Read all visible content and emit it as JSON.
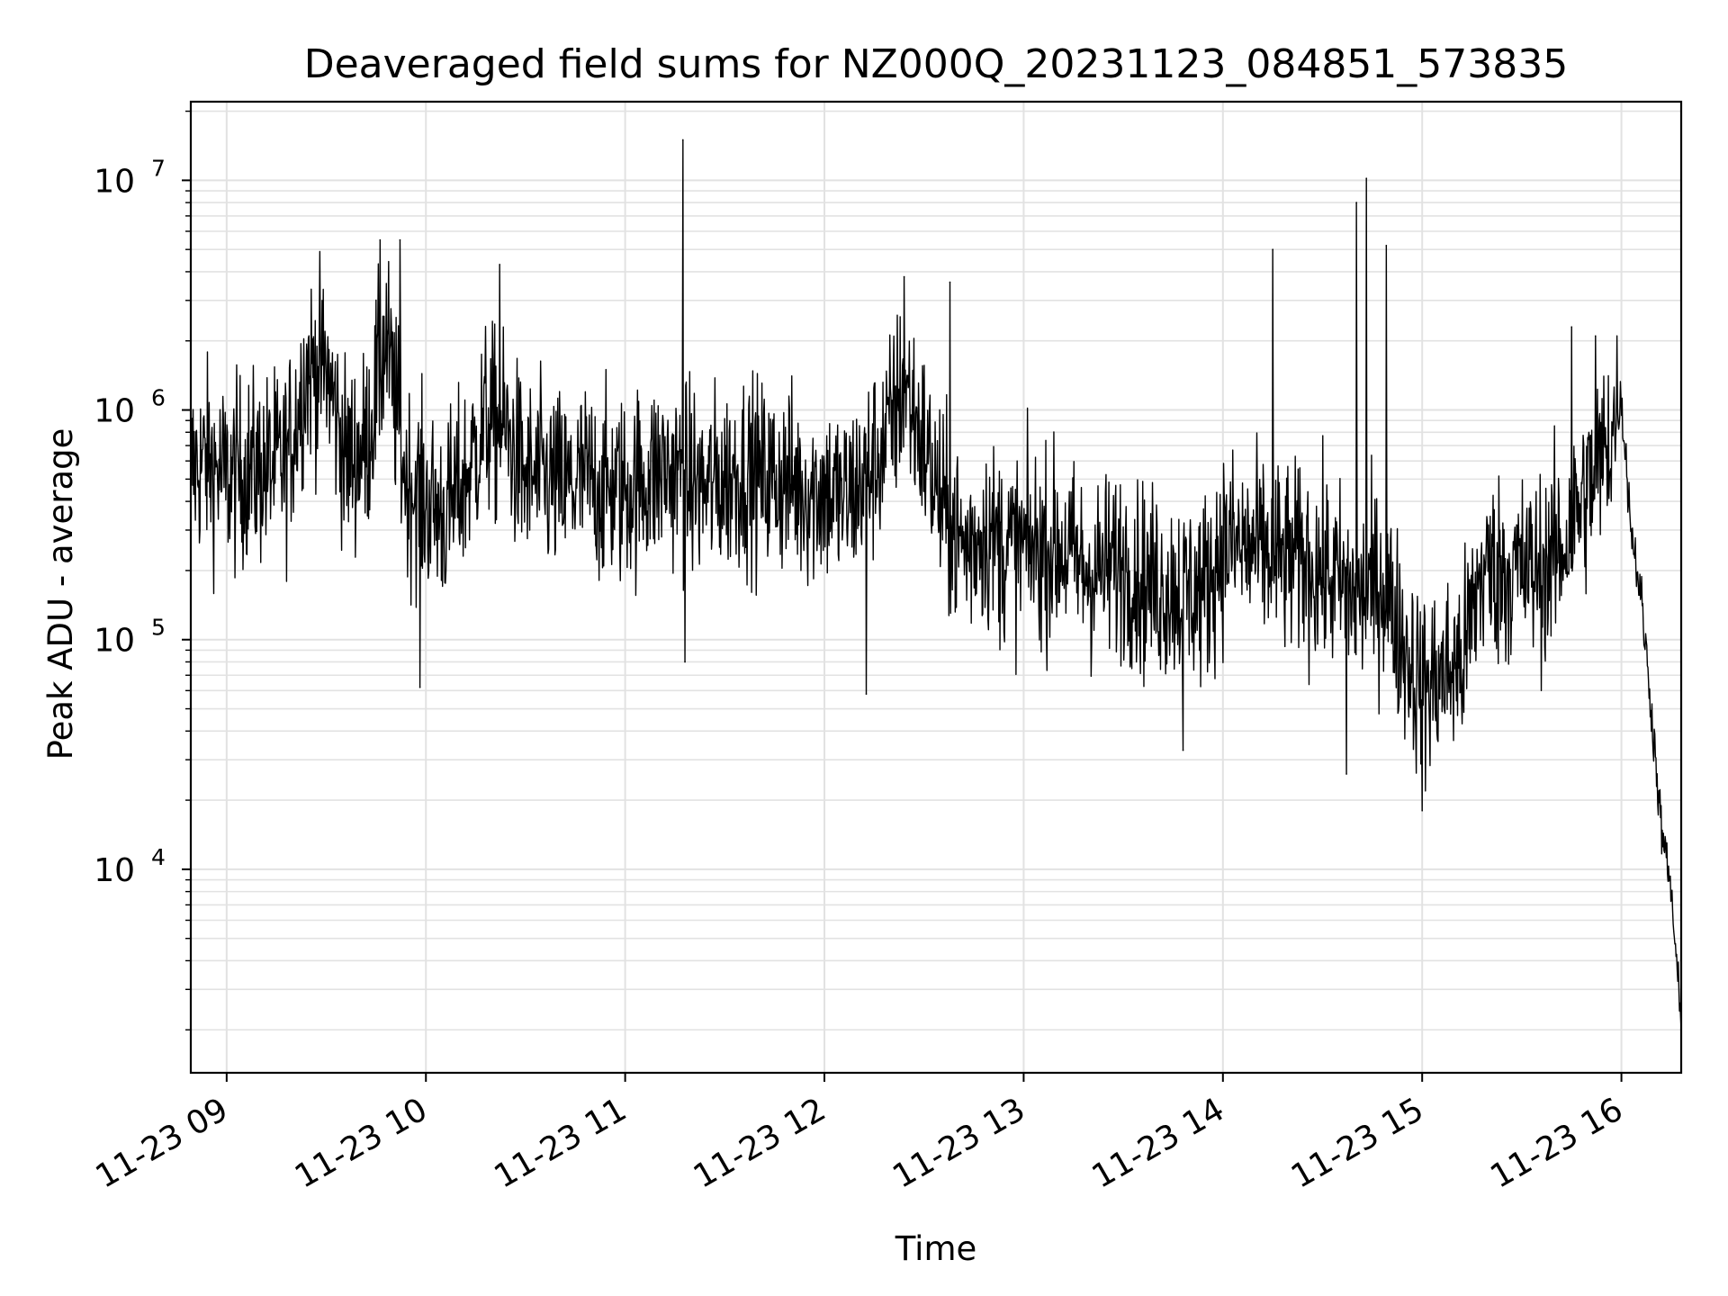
{
  "chart_data": {
    "type": "line",
    "title": "Deaveraged field sums for NZ000Q_20231123_084851_573835",
    "xlabel": "Time",
    "ylabel": "Peak ADU - average",
    "yscale": "log",
    "grid": true,
    "x_ticks": [
      "11-23 09",
      "11-23 10",
      "11-23 11",
      "11-23 12",
      "11-23 13",
      "11-23 14",
      "11-23 15",
      "11-23 16"
    ],
    "x_tick_hours": [
      9,
      10,
      11,
      12,
      13,
      14,
      15,
      16
    ],
    "xlim_hours": [
      8.82,
      16.3
    ],
    "y_ticks": [
      {
        "base": "10",
        "exp": "4",
        "value": 10000
      },
      {
        "base": "10",
        "exp": "5",
        "value": 100000
      },
      {
        "base": "10",
        "exp": "6",
        "value": 1000000
      },
      {
        "base": "10",
        "exp": "7",
        "value": 10000000
      }
    ],
    "ylim": [
      1300,
      22000000
    ],
    "series": [
      {
        "color": "#000000",
        "x_hours": [
          8.82,
          8.9,
          9.0,
          9.1,
          9.2,
          9.3,
          9.4,
          9.5,
          9.6,
          9.7,
          9.8,
          9.9,
          10.0,
          10.1,
          10.2,
          10.3,
          10.4,
          10.5,
          10.6,
          10.7,
          10.8,
          10.9,
          11.0,
          11.1,
          11.2,
          11.3,
          11.4,
          11.5,
          11.6,
          11.7,
          11.8,
          11.9,
          12.0,
          12.1,
          12.2,
          12.3,
          12.4,
          12.5,
          12.6,
          12.7,
          12.8,
          12.9,
          13.0,
          13.1,
          13.2,
          13.3,
          13.4,
          13.5,
          13.6,
          13.7,
          13.8,
          13.9,
          14.0,
          14.1,
          14.2,
          14.3,
          14.4,
          14.5,
          14.6,
          14.7,
          14.8,
          14.9,
          15.0,
          15.1,
          15.2,
          15.3,
          15.4,
          15.5,
          15.6,
          15.7,
          15.8,
          15.9,
          16.0,
          16.05,
          16.1,
          16.15,
          16.2,
          16.25,
          16.3
        ],
        "y_median": [
          550000,
          600000,
          500000,
          550000,
          550000,
          600000,
          1500000,
          1500000,
          600000,
          700000,
          2000000,
          500000,
          400000,
          350000,
          500000,
          900000,
          800000,
          500000,
          500000,
          450000,
          500000,
          450000,
          450000,
          500000,
          550000,
          500000,
          450000,
          500000,
          550000,
          500000,
          500000,
          450000,
          450000,
          400000,
          500000,
          700000,
          1300000,
          700000,
          350000,
          250000,
          300000,
          250000,
          250000,
          250000,
          250000,
          200000,
          200000,
          220000,
          180000,
          170000,
          170000,
          160000,
          260000,
          250000,
          240000,
          220000,
          220000,
          200000,
          170000,
          150000,
          180000,
          100000,
          60000,
          70000,
          80000,
          200000,
          200000,
          200000,
          200000,
          250000,
          400000,
          600000,
          1100000,
          300000,
          150000,
          50000,
          15000,
          8000,
          2000
        ],
        "peaks": [
          {
            "x_hours": 9.77,
            "y": 5500000
          },
          {
            "x_hours": 9.87,
            "y": 5500000
          },
          {
            "x_hours": 10.37,
            "y": 4300000
          },
          {
            "x_hours": 11.29,
            "y": 15000000
          },
          {
            "x_hours": 12.4,
            "y": 3800000
          },
          {
            "x_hours": 12.63,
            "y": 3600000
          },
          {
            "x_hours": 14.25,
            "y": 5000000
          },
          {
            "x_hours": 14.67,
            "y": 8000000
          },
          {
            "x_hours": 14.72,
            "y": 10200000
          },
          {
            "x_hours": 14.82,
            "y": 5200000
          },
          {
            "x_hours": 15.75,
            "y": 2300000
          },
          {
            "x_hours": 15.87,
            "y": 2100000
          }
        ],
        "dips": [
          {
            "x_hours": 9.97,
            "y": 62000
          },
          {
            "x_hours": 11.3,
            "y": 80000
          },
          {
            "x_hours": 12.21,
            "y": 58000
          },
          {
            "x_hours": 13.8,
            "y": 33000
          },
          {
            "x_hours": 14.62,
            "y": 26000
          },
          {
            "x_hours": 15.0,
            "y": 18000
          }
        ]
      }
    ]
  }
}
